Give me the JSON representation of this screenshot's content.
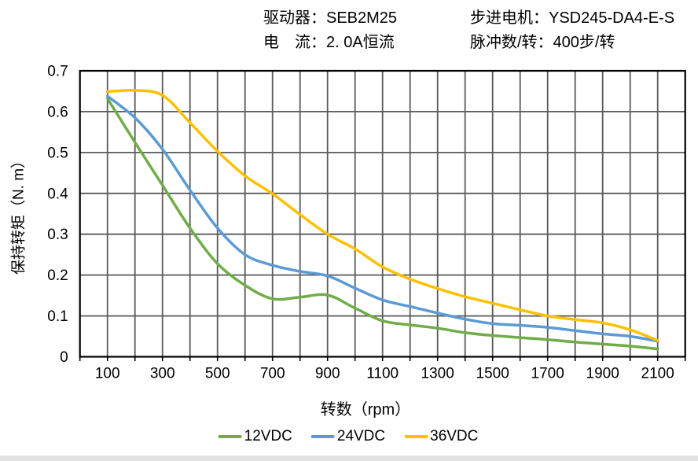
{
  "header": {
    "left_lines": [
      "驱动器：SEB2M25",
      "电　流：2. 0A恒流"
    ],
    "right_lines": [
      "步进电机：YSD245-DA4-E-S",
      "脉冲数/转：400步/转"
    ]
  },
  "colors": {
    "grid": "#5a5a5a",
    "border": "#000000",
    "text": "#000000",
    "series_green": "#70AD47",
    "series_blue": "#5B9BD5",
    "series_yellow": "#FFC000",
    "bottom_strip": "#e2e2e2"
  },
  "chart_data": {
    "type": "line",
    "title": "",
    "xlabel": "转数（rpm）",
    "ylabel": "保持转矩（N. m）",
    "xlim": [
      0,
      2200
    ],
    "ylim": [
      0,
      0.7
    ],
    "x_grid_step": 100,
    "y_grid_step": 0.1,
    "grid": "on",
    "legend_position": "bottom",
    "x_tick_values": [
      100,
      300,
      500,
      700,
      900,
      1100,
      1300,
      1500,
      1700,
      1900,
      2100
    ],
    "x_tick_labels": [
      "100",
      "300",
      "500",
      "700",
      "900",
      "1100",
      "1300",
      "1500",
      "1700",
      "1900",
      "2100"
    ],
    "y_tick_values": [
      0,
      0.1,
      0.2,
      0.3,
      0.4,
      0.5,
      0.6,
      0.7
    ],
    "y_tick_labels": [
      "0",
      "0.1",
      "0.2",
      "0.3",
      "0.4",
      "0.5",
      "0.6",
      "0.7"
    ],
    "x": [
      100,
      200,
      300,
      400,
      500,
      600,
      700,
      800,
      900,
      1000,
      1100,
      1200,
      1300,
      1400,
      1500,
      1600,
      1700,
      1800,
      1900,
      2000,
      2100
    ],
    "series": [
      {
        "name": "12VDC",
        "color": "#70AD47",
        "values": [
          0.632,
          0.525,
          0.42,
          0.315,
          0.228,
          0.175,
          0.142,
          0.146,
          0.151,
          0.119,
          0.088,
          0.078,
          0.07,
          0.059,
          0.052,
          0.047,
          0.042,
          0.036,
          0.031,
          0.026,
          0.019
        ]
      },
      {
        "name": "24VDC",
        "color": "#5B9BD5",
        "values": [
          0.638,
          0.585,
          0.508,
          0.408,
          0.315,
          0.25,
          0.224,
          0.209,
          0.198,
          0.168,
          0.139,
          0.123,
          0.107,
          0.092,
          0.081,
          0.077,
          0.072,
          0.064,
          0.056,
          0.05,
          0.038
        ]
      },
      {
        "name": "36VDC",
        "color": "#FFC000",
        "values": [
          0.649,
          0.652,
          0.64,
          0.573,
          0.503,
          0.443,
          0.399,
          0.348,
          0.3,
          0.264,
          0.22,
          0.19,
          0.167,
          0.147,
          0.131,
          0.115,
          0.1,
          0.091,
          0.083,
          0.066,
          0.04
        ]
      }
    ]
  }
}
